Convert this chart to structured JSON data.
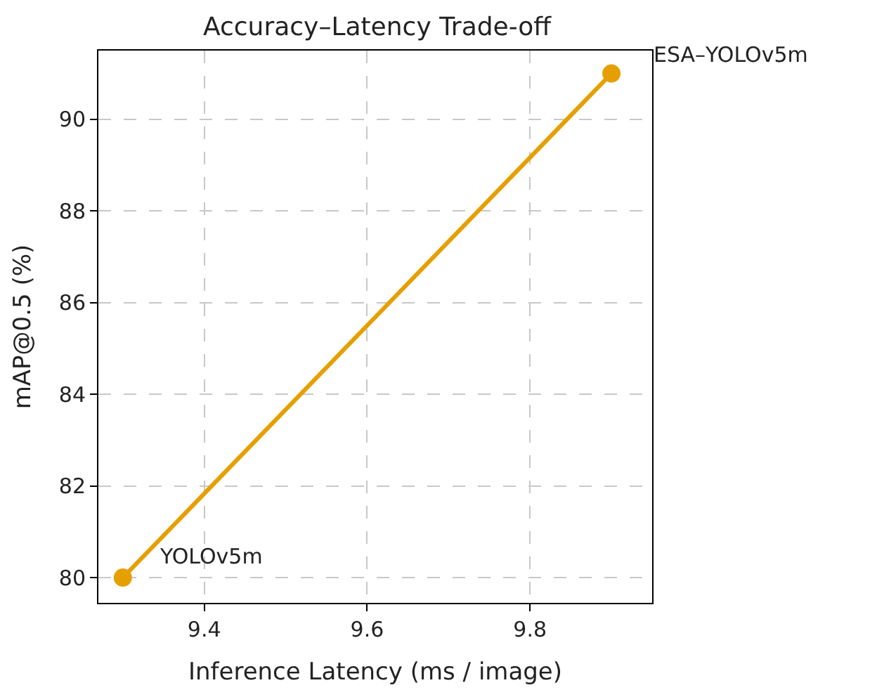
{
  "chart_data": {
    "type": "line",
    "title": "Accuracy–Latency Trade-off",
    "xlabel": "Inference Latency (ms / image)",
    "ylabel": "mAP@0.5 (%)",
    "x": [
      9.3,
      9.9
    ],
    "series": [
      {
        "color": "#e69f00",
        "values": [
          80,
          91
        ]
      }
    ],
    "annotations": [
      {
        "text": "YOLOv5m",
        "x": 9.3,
        "y": 80
      },
      {
        "text": "ESA–YOLOv5m",
        "x": 9.9,
        "y": 91
      }
    ],
    "xlim": [
      9.27,
      9.95
    ],
    "xticks": [
      9.4,
      9.6,
      9.8
    ],
    "ylim": [
      79.45,
      91.5
    ],
    "yticks": [
      80,
      82,
      84,
      86,
      88,
      90
    ],
    "grid": true,
    "marker": "circle",
    "line_style": "solid",
    "legend": false
  }
}
